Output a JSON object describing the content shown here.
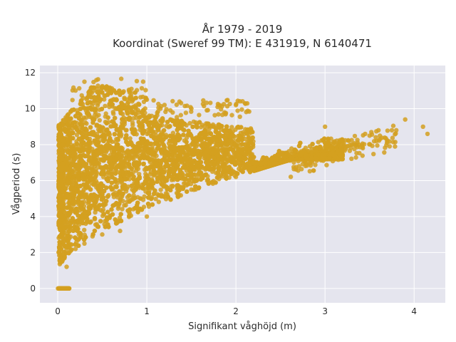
{
  "chart_data": {
    "type": "scatter",
    "title_line1": "År 1979 - 2019",
    "title_line2": "Koordinat (Sweref 99 TM): E 431919, N 6140471",
    "xlabel": "Signifikant våghöjd (m)",
    "ylabel": "Vågperiod (s)",
    "xlim": [
      -0.2,
      4.35
    ],
    "ylim": [
      -0.8,
      12.4
    ],
    "xticks": [
      0,
      1,
      2,
      3,
      4
    ],
    "yticks": [
      0,
      2,
      4,
      6,
      8,
      10,
      12
    ],
    "grid": true,
    "marker_color": "#d4a020",
    "plot_background": "#e5e5ee",
    "series": [
      {
        "points_sample": [
          [
            0.02,
            0
          ],
          [
            0.05,
            0
          ],
          [
            0.08,
            0
          ],
          [
            0.12,
            0
          ],
          [
            0.05,
            1.5
          ],
          [
            0.1,
            1.2
          ],
          [
            0.2,
            2.2
          ],
          [
            0.3,
            2.5
          ],
          [
            0.5,
            3.0
          ],
          [
            0.7,
            3.2
          ],
          [
            1.0,
            4.0
          ],
          [
            0.3,
            11.5
          ],
          [
            0.5,
            11.2
          ],
          [
            0.8,
            11.0
          ],
          [
            1.0,
            10.5
          ],
          [
            1.5,
            10.0
          ],
          [
            2.0,
            10.2
          ],
          [
            1.5,
            5.5
          ],
          [
            2.0,
            6.2
          ],
          [
            2.5,
            7.0
          ],
          [
            2.9,
            7.8
          ],
          [
            3.2,
            8.2
          ],
          [
            3.5,
            8.5
          ],
          [
            3.6,
            8.8
          ],
          [
            3.75,
            8.8
          ],
          [
            3.9,
            9.4
          ],
          [
            3.8,
            8.8
          ],
          [
            4.1,
            9.0
          ],
          [
            4.15,
            8.6
          ],
          [
            3.0,
            9.0
          ],
          [
            3.3,
            8.0
          ],
          [
            3.45,
            8.6
          ]
        ]
      }
    ]
  }
}
